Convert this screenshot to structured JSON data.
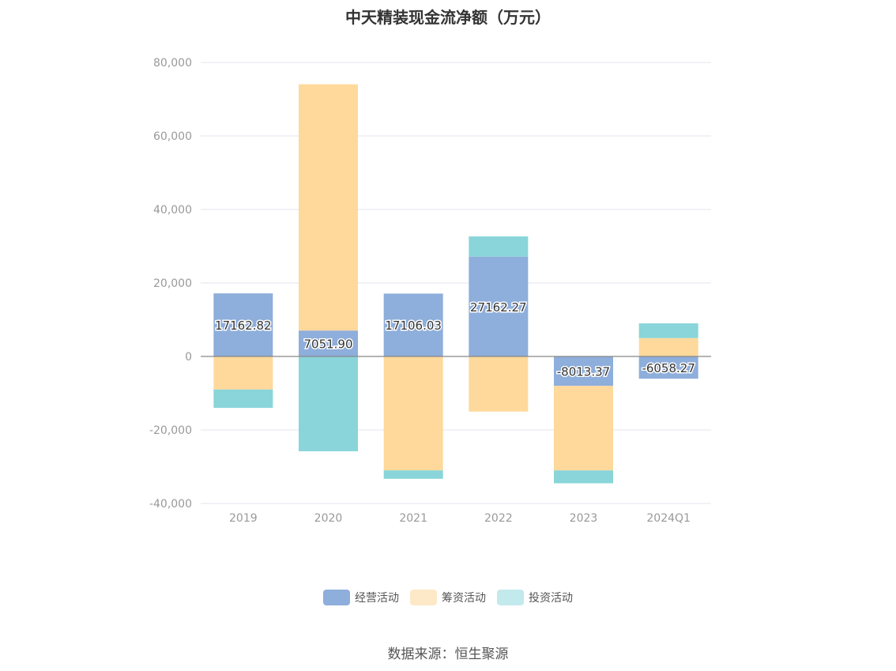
{
  "source_label": "数据来源：恒生聚源",
  "chart_data": {
    "type": "bar",
    "stacked": true,
    "title": "中天精装现金流净额（万元）",
    "categories": [
      "2019",
      "2020",
      "2021",
      "2022",
      "2023",
      "2024Q1"
    ],
    "ylim": [
      -40000,
      80000
    ],
    "yticks": [
      80000,
      60000,
      40000,
      20000,
      0,
      -20000,
      -40000
    ],
    "ytick_labels": [
      "80,000",
      "60,000",
      "40,000",
      "20,000",
      "0",
      "-20,000",
      "-40,000"
    ],
    "grid": true,
    "legend_position": "bottom",
    "series": [
      {
        "name": "经营活动",
        "color": "#8eaedb",
        "values": [
          17162.82,
          7051.9,
          17106.03,
          27162.27,
          -8013.37,
          -6058.27
        ],
        "labels": [
          "17162.82",
          "7051.90",
          "17106.03",
          "27162.27",
          "-8013.37",
          "-6058.27"
        ]
      },
      {
        "name": "筹资活动",
        "color": "#fed99b",
        "legend_color": "#fde8c8",
        "values": [
          -9000,
          67000,
          -31000,
          -15000,
          -23000,
          5000
        ]
      },
      {
        "name": "投资活动",
        "color": "#89d5d9",
        "legend_color": "#c2e9ec",
        "values": [
          -5000,
          -25800,
          -2300,
          5500,
          -3500,
          4000
        ]
      }
    ]
  }
}
